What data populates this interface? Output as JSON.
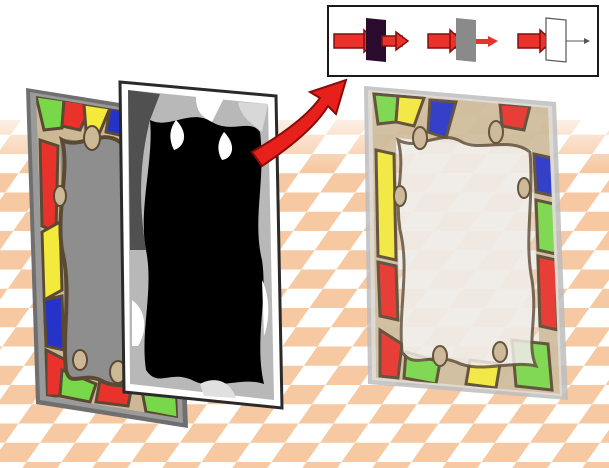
{
  "figure": {
    "panels": [
      {
        "id": "stained-glass-color-panel",
        "description_icon": "stained-glass-panel"
      },
      {
        "id": "opacity-mask-panel",
        "description_icon": "alpha-mask-panel"
      },
      {
        "id": "composited-translucent-panel",
        "description_icon": "translucent-panel"
      }
    ],
    "inset": {
      "stages": [
        {
          "name": "dark-filter",
          "fill": "#2a0b2e"
        },
        {
          "name": "gray-filter",
          "fill": "#8a8a8a"
        },
        {
          "name": "clear-filter",
          "fill": "#ffffff"
        }
      ]
    },
    "colors": {
      "frame": "#7a7a7a",
      "lead": "#5b4a33",
      "leaf": "#cdb896",
      "red": "#e8322b",
      "yellow": "#f4ea3c",
      "blue": "#2633c8",
      "green": "#78d84a",
      "glass_gray": "#8e8e8e",
      "mask_black": "#000000",
      "arrow_red": "#e8201c",
      "floor_peach": "#f6c9a3"
    }
  }
}
